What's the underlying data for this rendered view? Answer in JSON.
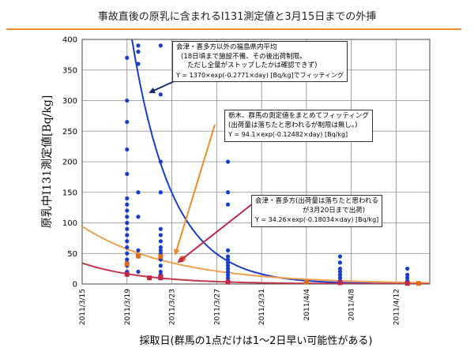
{
  "slide": {
    "title": "事故直後の原乳に含まれるI131測定値と3月15日までの外挿"
  },
  "chart_data": {
    "type": "scatter",
    "title": "",
    "xlabel": "採取日(群馬の1点だけは1～2日早い可能性がある)",
    "ylabel": "原乳中I131測定値[Bq/kg]",
    "x_dates": [
      "2011-03-15",
      "2011-04-15"
    ],
    "ylim": [
      0,
      400
    ],
    "yticks": [
      0,
      50,
      100,
      150,
      200,
      250,
      300,
      350,
      400
    ],
    "xticks": [
      "2011/3/15",
      "2011/3/19",
      "2011/3/23",
      "2011/3/27",
      "2011/3/31",
      "2011/4/4",
      "2011/4/8",
      "2011/4/12"
    ],
    "grid": true,
    "series": [
      {
        "name": "blue",
        "color": "#1a3ccc",
        "marker": "circle",
        "points": [
          [
            "2011-03-19",
            370
          ],
          [
            "2011-03-19",
            300
          ],
          [
            "2011-03-19",
            265
          ],
          [
            "2011-03-19",
            220
          ],
          [
            "2011-03-19",
            180
          ],
          [
            "2011-03-19",
            140
          ],
          [
            "2011-03-19",
            130
          ],
          [
            "2011-03-19",
            120
          ],
          [
            "2011-03-19",
            110
          ],
          [
            "2011-03-19",
            100
          ],
          [
            "2011-03-19",
            90
          ],
          [
            "2011-03-19",
            80
          ],
          [
            "2011-03-19",
            70
          ],
          [
            "2011-03-19",
            60
          ],
          [
            "2011-03-19",
            50
          ],
          [
            "2011-03-19",
            40
          ],
          [
            "2011-03-19",
            30
          ],
          [
            "2011-03-19",
            20
          ],
          [
            "2011-03-19",
            15
          ],
          [
            "2011-03-20",
            390
          ],
          [
            "2011-03-20",
            380
          ],
          [
            "2011-03-20",
            360
          ],
          [
            "2011-03-20",
            150
          ],
          [
            "2011-03-20",
            110
          ],
          [
            "2011-03-20",
            55
          ],
          [
            "2011-03-20",
            45
          ],
          [
            "2011-03-20",
            20
          ],
          [
            "2011-03-22",
            390
          ],
          [
            "2011-03-22",
            310
          ],
          [
            "2011-03-22",
            200
          ],
          [
            "2011-03-22",
            150
          ],
          [
            "2011-03-22",
            90
          ],
          [
            "2011-03-22",
            80
          ],
          [
            "2011-03-22",
            70
          ],
          [
            "2011-03-22",
            60
          ],
          [
            "2011-03-22",
            55
          ],
          [
            "2011-03-22",
            50
          ],
          [
            "2011-03-22",
            45
          ],
          [
            "2011-03-22",
            40
          ],
          [
            "2011-03-22",
            30
          ],
          [
            "2011-03-22",
            20
          ],
          [
            "2011-03-22",
            15
          ],
          [
            "2011-03-22",
            10
          ],
          [
            "2011-03-28",
            200
          ],
          [
            "2011-03-28",
            150
          ],
          [
            "2011-03-28",
            130
          ],
          [
            "2011-03-28",
            55
          ],
          [
            "2011-03-28",
            45
          ],
          [
            "2011-03-28",
            40
          ],
          [
            "2011-03-28",
            35
          ],
          [
            "2011-03-28",
            30
          ],
          [
            "2011-03-28",
            25
          ],
          [
            "2011-03-28",
            20
          ],
          [
            "2011-03-28",
            15
          ],
          [
            "2011-03-28",
            10
          ],
          [
            "2011-03-28",
            5
          ],
          [
            "2011-04-07",
            45
          ],
          [
            "2011-04-07",
            35
          ],
          [
            "2011-04-07",
            25
          ],
          [
            "2011-04-07",
            20
          ],
          [
            "2011-04-07",
            15
          ],
          [
            "2011-04-07",
            10
          ],
          [
            "2011-04-07",
            5
          ],
          [
            "2011-04-13",
            25
          ],
          [
            "2011-04-13",
            15
          ],
          [
            "2011-04-13",
            10
          ],
          [
            "2011-04-13",
            5
          ]
        ]
      },
      {
        "name": "orange",
        "color": "#e06a1c",
        "marker": "square",
        "points": [
          [
            "2011-03-19",
            33
          ],
          [
            "2011-03-20",
            46
          ],
          [
            "2011-03-22",
            45
          ],
          [
            "2011-03-24",
            42
          ],
          [
            "2011-04-04",
            3
          ],
          [
            "2011-04-14",
            1
          ]
        ]
      },
      {
        "name": "red",
        "color": "#c0284a",
        "marker": "square",
        "points": [
          [
            "2011-03-19",
            16
          ],
          [
            "2011-03-21",
            10
          ],
          [
            "2011-03-22",
            10
          ],
          [
            "2011-03-22",
            12
          ],
          [
            "2011-03-28",
            3
          ],
          [
            "2011-04-07",
            2
          ],
          [
            "2011-04-13",
            1
          ]
        ]
      }
    ],
    "curves": [
      {
        "name": "blue-fit",
        "color": "#1a3ccc",
        "A": 1370,
        "k": 0.2771
      },
      {
        "name": "orange-fit",
        "color": "#f0a050",
        "A": 94.1,
        "k": 0.12482
      },
      {
        "name": "red-fit",
        "color": "#c0384a",
        "A": 34.26,
        "k": 0.18034
      }
    ],
    "annotations": {
      "blue": {
        "lines": [
          "会津・喜多方以外の福島県内平均",
          "(18日頃まで施設不備、その後出荷制限。",
          "ただし全量がストップしたかは確認できず)"
        ],
        "formula": "Y = 1370×exp(-0.2771×day) [Bq/kg]でフィッティング"
      },
      "orange": {
        "lines": [
          "栃木、群馬の測定値をまとめてフィッティング",
          "(出荷量は落ちたと思われるが制限は無し。)"
        ],
        "formula": "Y = 94.1×exp(-0.12482×day) [Bq/kg]"
      },
      "red": {
        "lines": [
          "会津・喜多方(出荷量は落ちたと思われる",
          "が3月20日まで出荷)"
        ],
        "formula": "Y = 34.26×exp(-0.18034×day) [Bq/kg]"
      }
    }
  }
}
